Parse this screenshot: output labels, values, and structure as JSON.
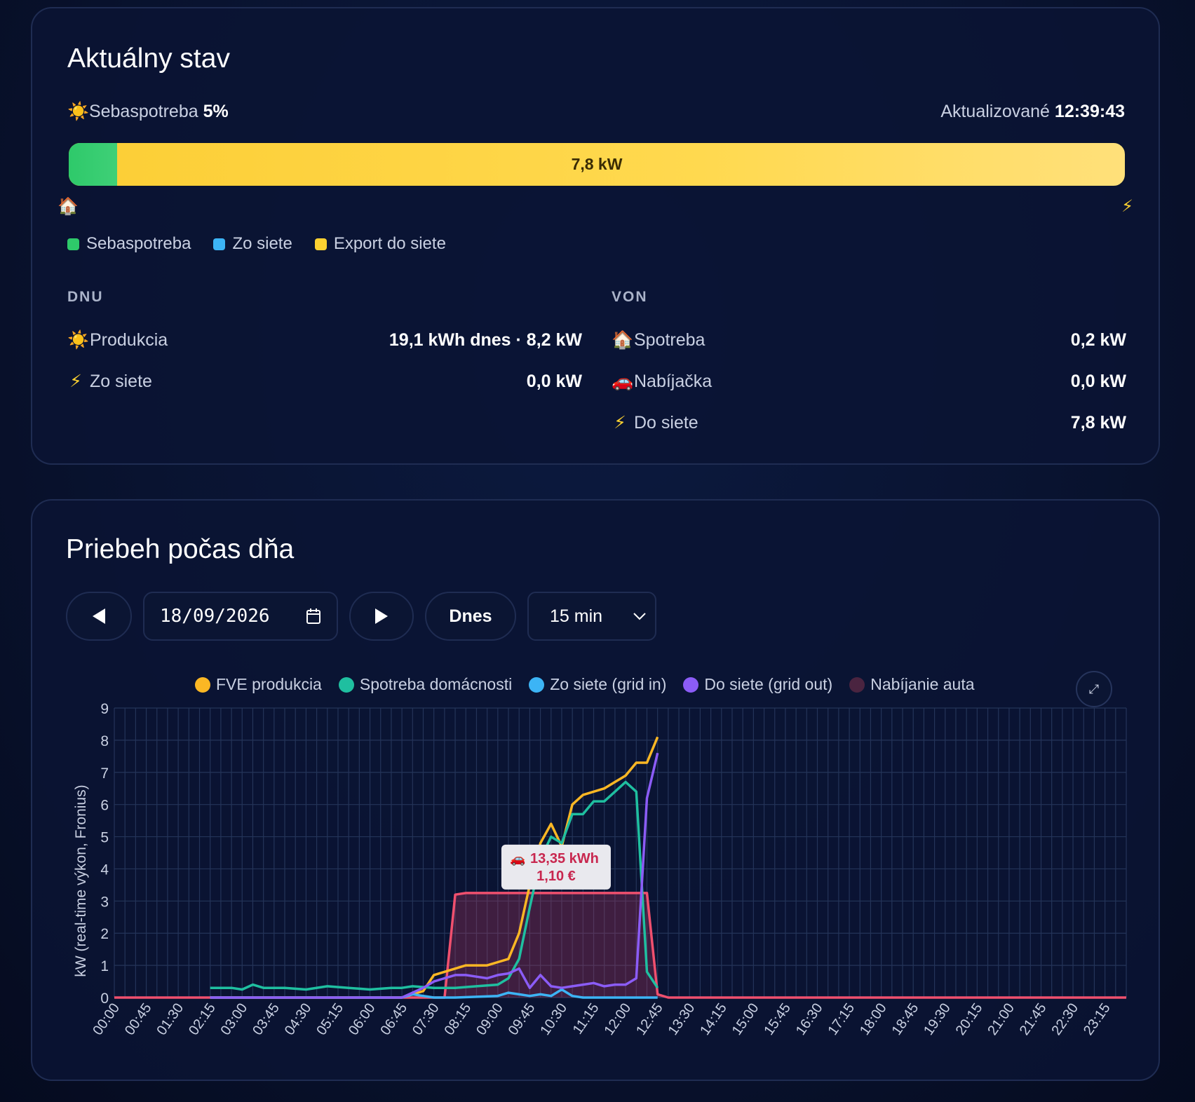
{
  "status": {
    "title": "Aktuálny stav",
    "self_label": "Sebaspotreba",
    "self_value": "5%",
    "updated_label": "Aktualizované",
    "updated_value": "12:39:43",
    "bar_label": "7,8 kW",
    "bar_self_fraction": 0.046,
    "legend": [
      {
        "label": "Sebaspotreba",
        "color": "#2ec96a"
      },
      {
        "label": "Zo siete",
        "color": "#3cb4f5"
      },
      {
        "label": "Export do siete",
        "color": "#fcd131"
      }
    ],
    "in_head": "DNU",
    "out_head": "VON",
    "in_rows": [
      {
        "icon": "sun-icon",
        "label": "Produkcia",
        "value": "19,1 kWh dnes · 8,2 kW"
      },
      {
        "icon": "lightning-icon",
        "label": "Zo siete",
        "value": "0,0 kW"
      }
    ],
    "out_rows": [
      {
        "icon": "house-icon",
        "label": "Spotreba",
        "value": "0,2 kW"
      },
      {
        "icon": "car-icon",
        "label": "Nabíjačka",
        "value": "0,0 kW"
      },
      {
        "icon": "lightning-icon",
        "label": "Do siete",
        "value": "7,8 kW"
      }
    ]
  },
  "day": {
    "title": "Priebeh počas dňa",
    "date_value": "18/09/2026",
    "today_label": "Dnes",
    "interval_value": "15 min",
    "interval_options": [
      "15 min"
    ]
  },
  "chart_data": {
    "type": "line",
    "ylabel": "kW (real-time výkon, Fronius)",
    "ylim": [
      0,
      9
    ],
    "yticks": [
      0,
      1,
      2,
      3,
      4,
      5,
      6,
      7,
      8,
      9
    ],
    "xticks": [
      "00:00",
      "00:45",
      "01:30",
      "02:15",
      "03:00",
      "03:45",
      "04:30",
      "05:15",
      "06:00",
      "06:45",
      "07:30",
      "08:15",
      "09:00",
      "09:45",
      "10:30",
      "11:15",
      "12:00",
      "12:45",
      "13:30",
      "14:15",
      "15:00",
      "15:45",
      "16:30",
      "17:15",
      "18:00",
      "18:45",
      "19:30",
      "20:15",
      "21:00",
      "21:45",
      "22:30",
      "23:15"
    ],
    "grid": true,
    "legend_position": "top",
    "series": [
      {
        "name": "FVE produkcia",
        "color": "#fbb724",
        "x": [
          "02:15",
          "03:00",
          "06:00",
          "06:45",
          "07:15",
          "07:30",
          "07:45",
          "08:00",
          "08:15",
          "08:30",
          "08:45",
          "09:00",
          "09:15",
          "09:30",
          "09:45",
          "10:00",
          "10:15",
          "10:30",
          "10:45",
          "11:00",
          "11:15",
          "11:30",
          "11:45",
          "12:00",
          "12:15",
          "12:30",
          "12:45"
        ],
        "y": [
          0,
          0,
          0,
          0,
          0.2,
          0.7,
          0.8,
          0.9,
          1.0,
          1.0,
          1.0,
          1.1,
          1.2,
          2.0,
          3.5,
          4.8,
          5.4,
          4.7,
          6.0,
          6.3,
          6.4,
          6.5,
          6.7,
          6.9,
          7.3,
          7.3,
          8.1
        ]
      },
      {
        "name": "Spotreba domácnosti",
        "color": "#1fbfa0",
        "x": [
          "02:15",
          "02:45",
          "03:00",
          "03:15",
          "03:30",
          "04:00",
          "04:30",
          "05:00",
          "05:30",
          "06:00",
          "06:30",
          "06:45",
          "07:00",
          "07:30",
          "08:00",
          "08:30",
          "09:00",
          "09:15",
          "09:30",
          "09:45",
          "10:00",
          "10:15",
          "10:30",
          "10:45",
          "11:00",
          "11:15",
          "11:30",
          "11:45",
          "12:00",
          "12:15",
          "12:30",
          "12:45"
        ],
        "y": [
          0.3,
          0.3,
          0.25,
          0.4,
          0.3,
          0.3,
          0.25,
          0.35,
          0.3,
          0.25,
          0.3,
          0.3,
          0.35,
          0.3,
          0.3,
          0.35,
          0.4,
          0.6,
          1.2,
          2.8,
          4.3,
          5.0,
          4.8,
          5.7,
          5.7,
          6.1,
          6.1,
          6.4,
          6.7,
          6.4,
          0.8,
          0.3
        ]
      },
      {
        "name": "Zo siete (grid in)",
        "color": "#3cb4f5",
        "x": [
          "02:15",
          "06:45",
          "07:00",
          "07:15",
          "07:30",
          "08:00",
          "09:00",
          "09:15",
          "09:30",
          "09:45",
          "10:00",
          "10:15",
          "10:30",
          "10:45",
          "11:00",
          "12:45"
        ],
        "y": [
          0,
          0,
          0.1,
          0.05,
          0,
          0,
          0.05,
          0.15,
          0.1,
          0.05,
          0.1,
          0.05,
          0.25,
          0.05,
          0,
          0
        ]
      },
      {
        "name": "Do siete (grid out)",
        "color": "#8b5cf6",
        "x": [
          "02:15",
          "06:45",
          "07:15",
          "07:30",
          "07:45",
          "08:00",
          "08:15",
          "08:30",
          "08:45",
          "09:00",
          "09:15",
          "09:30",
          "09:45",
          "10:00",
          "10:15",
          "10:30",
          "10:45",
          "11:00",
          "11:15",
          "11:30",
          "11:45",
          "12:00",
          "12:15",
          "12:30",
          "12:45"
        ],
        "y": [
          0,
          0,
          0.3,
          0.5,
          0.6,
          0.7,
          0.7,
          0.65,
          0.6,
          0.7,
          0.75,
          0.9,
          0.3,
          0.7,
          0.35,
          0.3,
          0.35,
          0.4,
          0.45,
          0.35,
          0.4,
          0.4,
          0.6,
          6.2,
          7.6
        ]
      },
      {
        "name": "Nabíjanie auta",
        "color": "#f0506e",
        "x": [
          "00:00",
          "07:45",
          "08:00",
          "08:15",
          "12:15",
          "12:30",
          "12:45",
          "13:00",
          "23:45"
        ],
        "y": [
          0,
          0,
          3.2,
          3.25,
          3.25,
          3.25,
          0.1,
          0,
          0
        ]
      }
    ],
    "annotation": {
      "line1": "13,35 kWh",
      "line2": "1,10 €",
      "icon": "car-icon",
      "x": "10:30",
      "y": 4.1
    }
  }
}
